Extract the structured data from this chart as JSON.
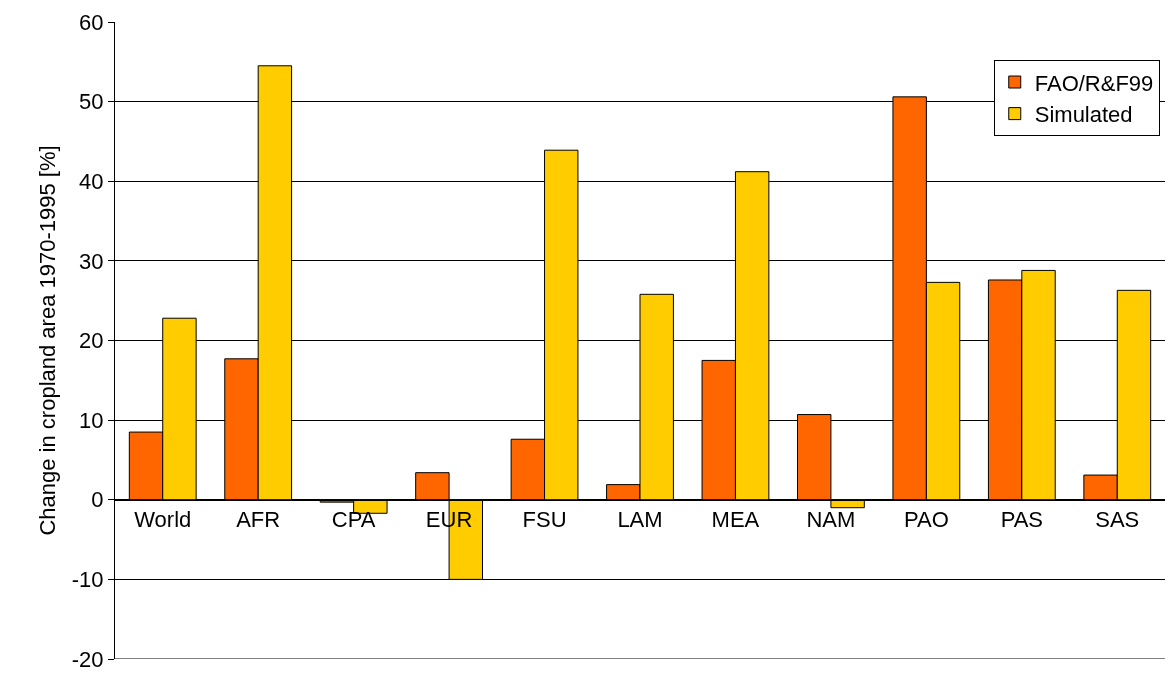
{
  "chart_data": {
    "type": "bar",
    "ylabel": "Change in cropland area 1970-1995 [%]",
    "categories": [
      "World",
      "AFR",
      "CPA",
      "EUR",
      "FSU",
      "LAM",
      "MEA",
      "NAM",
      "PAO",
      "PAS",
      "SAS"
    ],
    "series": [
      {
        "name": "FAO/R&F99",
        "color": "#ff6600",
        "values": [
          8.5,
          17.7,
          -0.3,
          3.4,
          7.6,
          1.9,
          17.5,
          10.7,
          50.6,
          27.6,
          3.1
        ]
      },
      {
        "name": "Simulated",
        "color": "#ffcc00",
        "values": [
          22.8,
          54.5,
          -1.7,
          -10,
          43.9,
          25.8,
          41.2,
          -1.0,
          27.3,
          28.8,
          26.3
        ]
      }
    ],
    "ylim": [
      -20,
      60
    ],
    "yticks": [
      -20,
      -10,
      0,
      10,
      20,
      30,
      40,
      50,
      60
    ],
    "grid": "y",
    "legend": "top right"
  }
}
